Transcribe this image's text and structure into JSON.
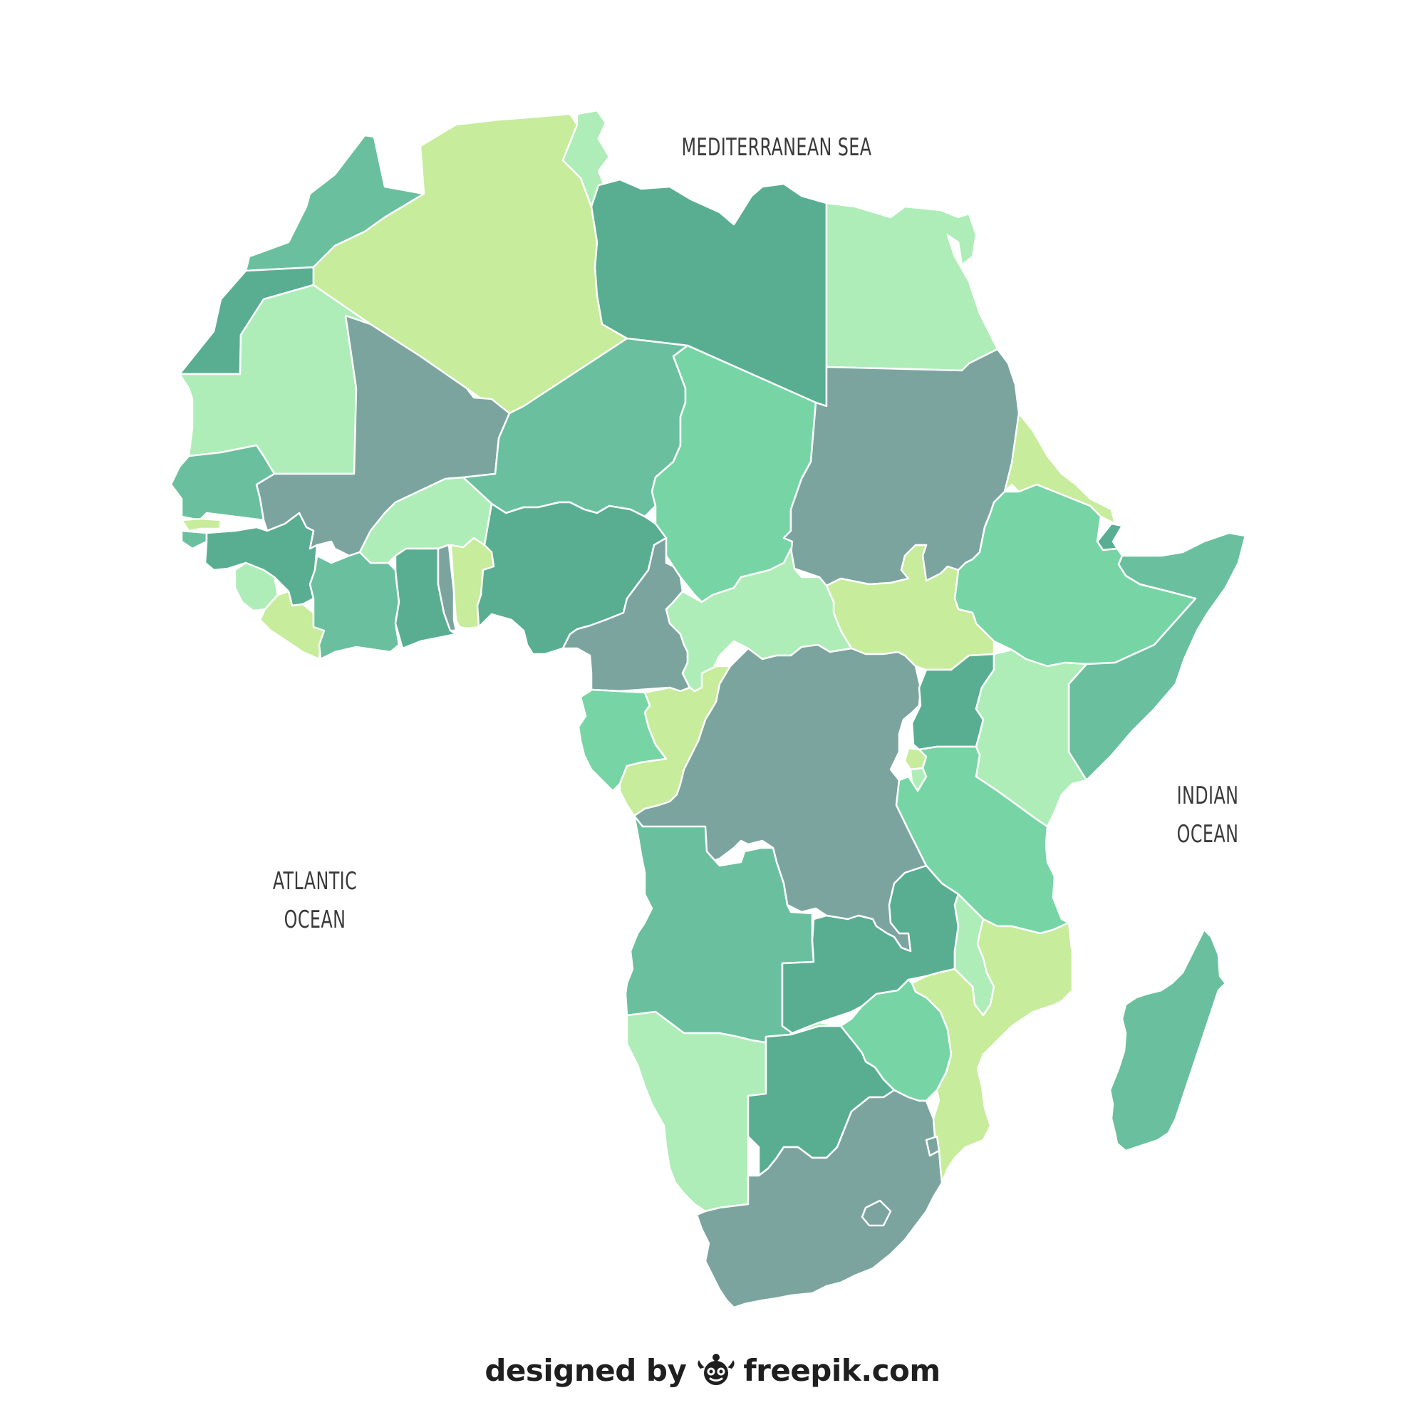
{
  "map": {
    "labels": {
      "mediterranean": "MEDITERRANEAN SEA",
      "atlantic_line1": "ATLANTIC",
      "atlantic_line2": "OCEAN",
      "indian_line1": "INDIAN",
      "indian_line2": "OCEAN"
    },
    "palette": {
      "light_lime": "#c6ec9c",
      "pale_green": "#aeedb7",
      "mint": "#77d5a5",
      "sea_green": "#6ac09e",
      "jade": "#59ae91",
      "gray_teal": "#7ba49f"
    }
  },
  "credit": {
    "prefix": "designed by",
    "brand": "freepik.com",
    "logo_icon": "freepik-logo-icon"
  }
}
